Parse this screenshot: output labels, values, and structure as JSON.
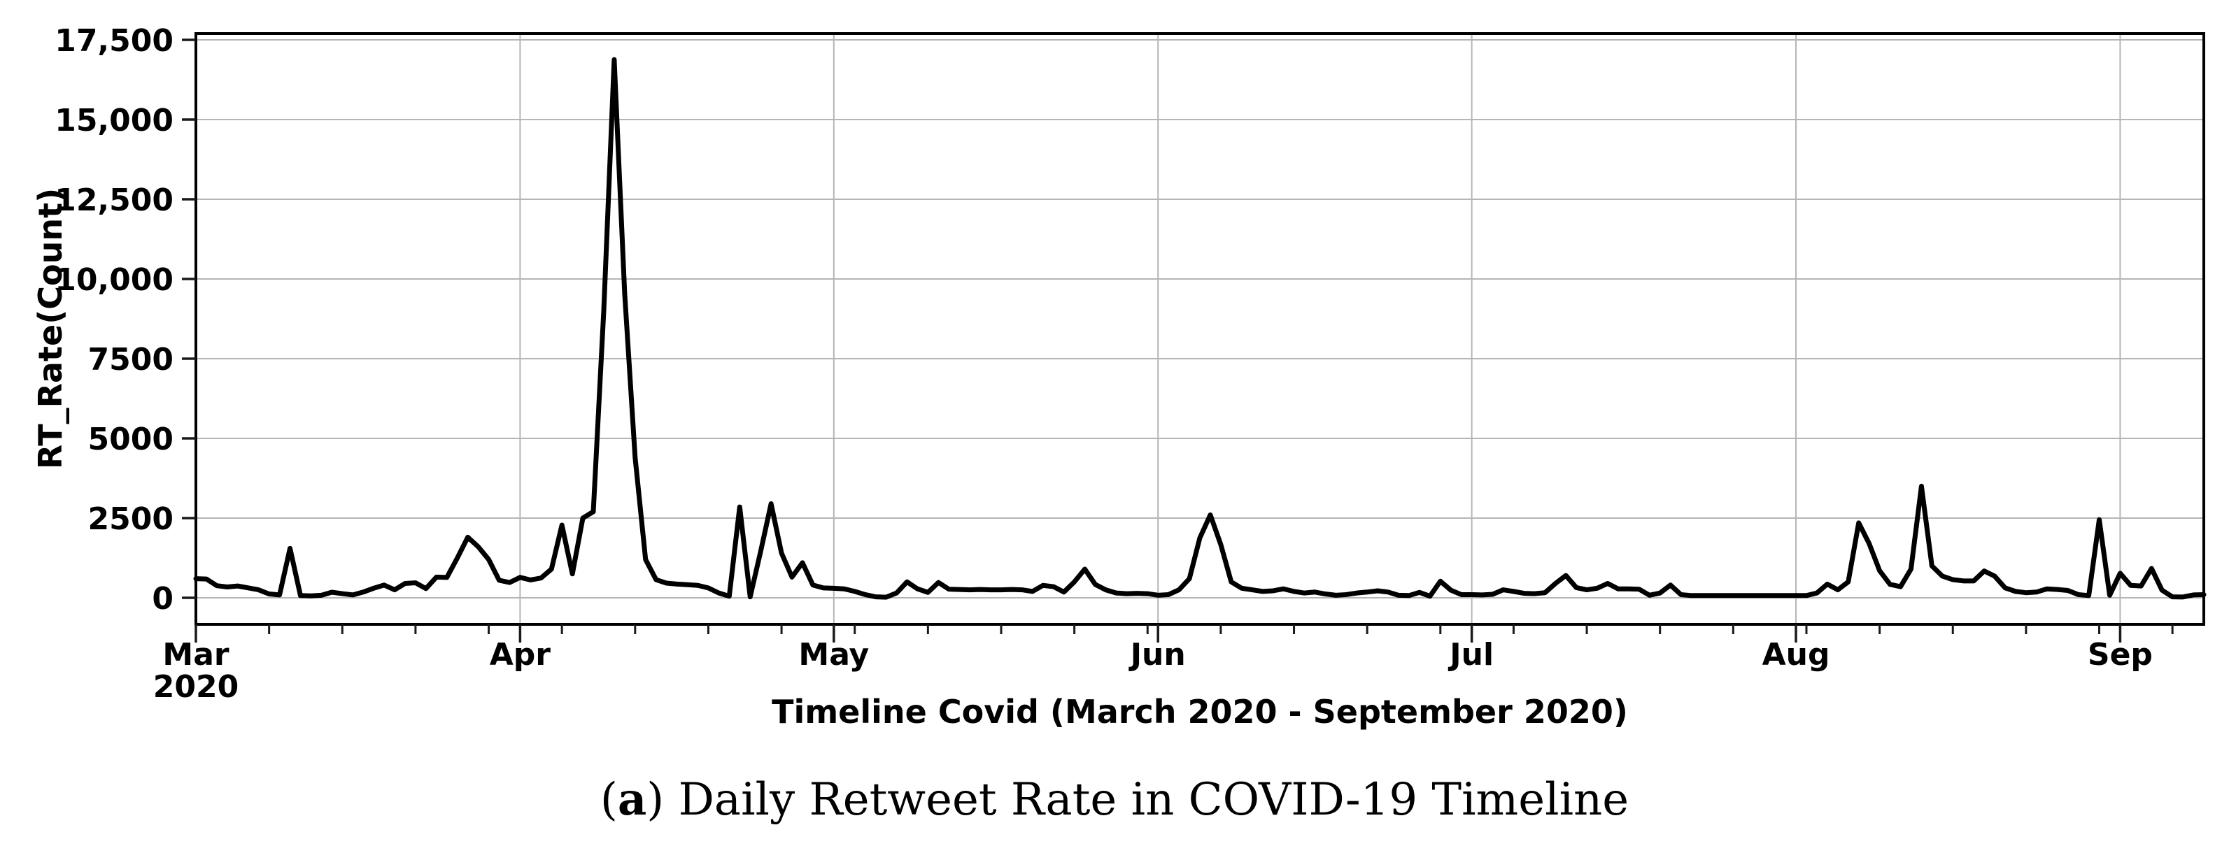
{
  "figure": {
    "background": "#ffffff"
  },
  "caption": {
    "open": "(",
    "index": "a",
    "rest": ") Daily Retweet Rate in COVID-19 Timeline"
  },
  "chart_data": {
    "type": "line",
    "title": "",
    "xlabel": "Timeline Covid (March 2020 - September 2020)",
    "ylabel": "RT_Rate(Count)",
    "grid": true,
    "legend": "none",
    "x_start_date": "2020-03-01",
    "x_end_date": "2020-09-09",
    "x_unit": "day",
    "ylim": [
      0,
      17500
    ],
    "colors": {
      "line": "#000000",
      "grid": "#b5b5b5",
      "spine": "#000000",
      "tick": "#1a1a1a"
    },
    "y_axis": {
      "ticks": [
        {
          "value": 0,
          "label": "0"
        },
        {
          "value": 2500,
          "label": "2500"
        },
        {
          "value": 5000,
          "label": "5000"
        },
        {
          "value": 7500,
          "label": "7500"
        },
        {
          "value": 10000,
          "label": "10,000"
        },
        {
          "value": 12500,
          "label": "12,500"
        },
        {
          "value": 15000,
          "label": "15,000"
        },
        {
          "value": 17500,
          "label": "17,500"
        }
      ]
    },
    "x_axis": {
      "major_ticks": [
        {
          "day": 0,
          "label": "Mar",
          "year": "2020"
        },
        {
          "day": 31,
          "label": "Apr"
        },
        {
          "day": 61,
          "label": "May"
        },
        {
          "day": 92,
          "label": "Jun"
        },
        {
          "day": 122,
          "label": "Jul"
        },
        {
          "day": 153,
          "label": "Aug"
        },
        {
          "day": 184,
          "label": "Sep"
        }
      ],
      "minor_tick_days": [
        7,
        14,
        21,
        28,
        35,
        42,
        49,
        56,
        63,
        70,
        77,
        84,
        91,
        98,
        105,
        112,
        119,
        126,
        133,
        140,
        147,
        154,
        161,
        168,
        175,
        182,
        189
      ]
    },
    "series": [
      {
        "name": "RT_Rate(Count)",
        "start_date": "2020-03-01",
        "values": [
          600,
          590,
          380,
          340,
          370,
          310,
          250,
          120,
          90,
          1550,
          70,
          60,
          80,
          175,
          130,
          90,
          180,
          300,
          400,
          250,
          450,
          470,
          290,
          650,
          640,
          1250,
          1900,
          1600,
          1200,
          550,
          480,
          640,
          560,
          620,
          900,
          2280,
          750,
          2500,
          2700,
          9000,
          16880,
          9550,
          4400,
          1200,
          570,
          460,
          430,
          410,
          390,
          310,
          150,
          50,
          2850,
          30,
          1450,
          2950,
          1400,
          650,
          1100,
          400,
          310,
          300,
          280,
          200,
          100,
          30,
          20,
          150,
          500,
          280,
          170,
          480,
          270,
          260,
          250,
          260,
          250,
          250,
          260,
          250,
          200,
          390,
          350,
          180,
          500,
          900,
          420,
          250,
          150,
          130,
          140,
          130,
          80,
          100,
          250,
          600,
          1880,
          2600,
          1670,
          500,
          300,
          250,
          200,
          220,
          280,
          200,
          150,
          180,
          120,
          80,
          100,
          150,
          180,
          220,
          180,
          80,
          70,
          170,
          50,
          520,
          240,
          100,
          100,
          90,
          110,
          250,
          200,
          140,
          130,
          160,
          450,
          700,
          320,
          250,
          300,
          450,
          280,
          280,
          270,
          80,
          150,
          400,
          100,
          70,
          70,
          70,
          70,
          70,
          70,
          70,
          70,
          70,
          70,
          70,
          70,
          150,
          430,
          250,
          500,
          2350,
          1700,
          850,
          420,
          350,
          900,
          3500,
          1000,
          680,
          570,
          530,
          530,
          840,
          680,
          310,
          200,
          160,
          180,
          280,
          260,
          230,
          100,
          70,
          2450,
          80,
          770,
          390,
          370,
          920,
          240,
          30,
          25,
          90,
          100
        ]
      }
    ],
    "peak": {
      "date": "2020-04-10",
      "value": 16880
    }
  }
}
